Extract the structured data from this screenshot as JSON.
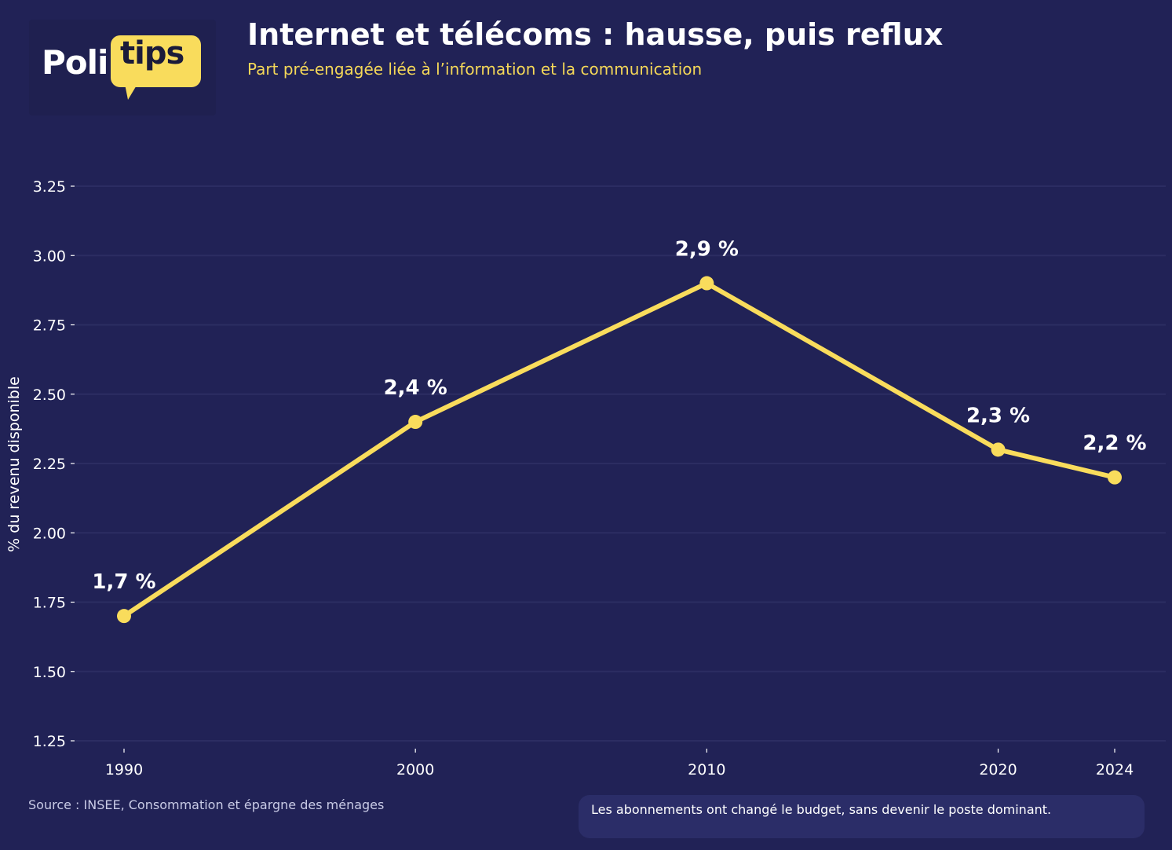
{
  "logo": {
    "part1": "Poli",
    "part2": "tips"
  },
  "header": {
    "title": "Internet et télécoms : hausse, puis reflux",
    "subtitle": "Part pré-engagée liée à l’information et la communication"
  },
  "footer": {
    "source": "Source : INSEE, Consommation et épargne des ménages",
    "note": "Les abonnements ont changé le budget, sans devenir le poste dominant."
  },
  "colors": {
    "background": "#212256",
    "line": "#f9dc5c",
    "grid": "#2c2d62",
    "text": "#ffffff",
    "accent": "#f5d858"
  },
  "chart_data": {
    "type": "line",
    "title": "Internet et télécoms : hausse, puis reflux",
    "subtitle": "Part pré-engagée liée à l’information et la communication",
    "xlabel": "",
    "ylabel": "% du revenu disponible",
    "x": [
      1990,
      2000,
      2010,
      2020,
      2024
    ],
    "x_ticks": [
      "1990",
      "2000",
      "2010",
      "2020",
      "2024"
    ],
    "series": [
      {
        "values": [
          1.7,
          2.4,
          2.9,
          2.3,
          2.2
        ],
        "labels": [
          "1,7 %",
          "2,4 %",
          "2,9 %",
          "2,3 %",
          "2,2 %"
        ]
      }
    ],
    "y_ticks": [
      1.25,
      1.5,
      1.75,
      2.0,
      2.25,
      2.5,
      2.75,
      3.0,
      3.25
    ],
    "y_tick_labels": [
      "1.25",
      "1.50",
      "1.75",
      "2.00",
      "2.25",
      "2.50",
      "2.75",
      "3.00",
      "3.25"
    ],
    "ylim": [
      1.25,
      3.25
    ],
    "xlim": [
      1990,
      2024
    ],
    "grid": "horizontal",
    "legend": "none"
  }
}
